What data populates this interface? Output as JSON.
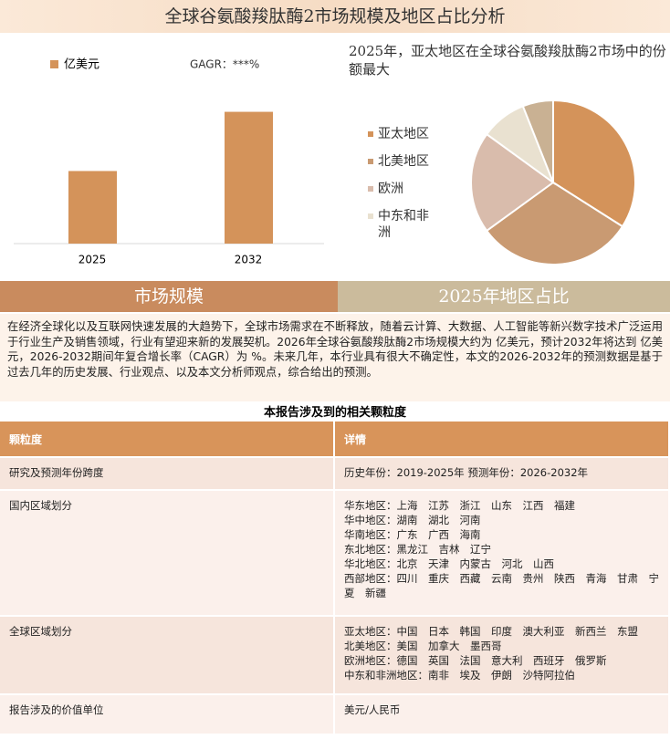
{
  "title": "全球谷氨酸羧肽酶2市场规模及地区占比分析",
  "chart_data": [
    {
      "type": "bar",
      "categories": [
        "2025",
        "2032"
      ],
      "series": [
        {
          "name": "亿美元",
          "color": "#d4935a",
          "values": [
            76,
            138
          ]
        }
      ],
      "annotation": "GAGR：***%",
      "ylim": [
        0,
        150
      ]
    },
    {
      "type": "pie",
      "title": "2025年，亚太地区在全球谷氨酸羧肽酶2市场中的份额最大",
      "categories": [
        "亚太地区",
        "北美地区",
        "欧洲",
        "中东和非洲",
        null
      ],
      "values": [
        34,
        31,
        20,
        9,
        6
      ],
      "colors": [
        "#d4935a",
        "#c99a72",
        "#d9bcac",
        "#e9e1d0",
        "#c9b193"
      ]
    }
  ],
  "sections": [
    "市场规模",
    "2025年地区占比"
  ],
  "paragraph": "在经济全球化以及互联网快速发展的大趋势下，全球市场需求在不断释放，随着云计算、大数据、人工智能等新兴数字技术广泛运用于行业生产及销售领域，行业有望迎来新的发展契机。2026年全球谷氨酸羧肽酶2市场规模大约为 亿美元，预计2032年将达到 亿美元，2026-2032期间年复合增长率（CAGR）为 %。未来几年，本行业具有很大不确定性，本文的2026-2032年的预测数据是基于过去几年的历史发展、行业观点、以及本文分析师观点，综合给出的预测。",
  "table": {
    "title": "本报告涉及到的相关颗粒度",
    "header": [
      "颗粒度",
      "详情"
    ],
    "rows": [
      [
        "研究及预测年份跨度",
        [
          "历史年份：2019-2025年 预测年份：2026-2032年"
        ]
      ],
      [
        "国内区域划分",
        [
          "华东地区：上海　江苏　浙江　山东　江西　福建",
          "华中地区：湖南　湖北　河南",
          "华南地区：广东　广西　海南",
          "东北地区：黑龙江　吉林　辽宁",
          "华北地区：北京　天津　内蒙古　河北　山西",
          "西部地区：四川　重庆　西藏　云南　贵州　陕西　青海　甘肃　宁夏　新疆"
        ]
      ],
      [
        "全球区域划分",
        [
          "亚太地区：中国　日本　韩国　印度　澳大利亚　新西兰　东盟",
          "北美地区：美国　加拿大　墨西哥",
          "欧洲地区：德国　英国　法国　意大利　西班牙　俄罗斯",
          "中东和非洲地区：南非　埃及　伊朗　沙特阿拉伯"
        ]
      ],
      [
        "报告涉及的价值单位",
        [
          "美元/人民币"
        ]
      ]
    ]
  }
}
